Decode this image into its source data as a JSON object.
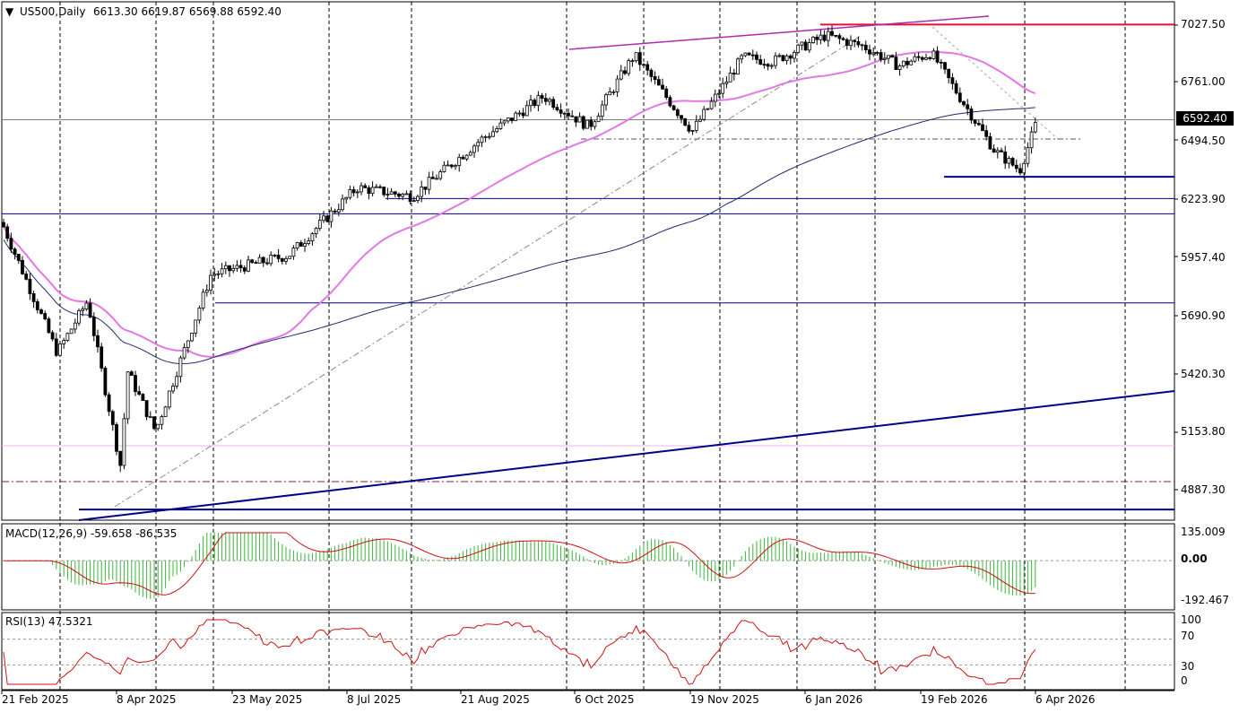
{
  "header": {
    "symbol_label": "US500,Daily",
    "ohlc": "6613.30 6619.87 6569.88 6592.40",
    "menu_icon": "triangle-down-icon"
  },
  "main_axis": {
    "ticks": [
      "7027.50",
      "6761.00",
      "6494.50",
      "6223.90",
      "5957.40",
      "5690.90",
      "5420.30",
      "5153.80",
      "4887.30"
    ],
    "last_price": "6592.40"
  },
  "macd": {
    "label": "MACD(12,26,9) -59.658 -86.535",
    "ticks": [
      "135.009",
      "0.00",
      "-192.467"
    ]
  },
  "rsi": {
    "label": "RSI(13) 47.5321",
    "ticks": [
      "100",
      "70",
      "30",
      "0"
    ]
  },
  "x_axis": {
    "labels": [
      "21 Feb 2025",
      "8 Apr 2025",
      "23 May 2025",
      "8 Jul 2025",
      "21 Aug 2025",
      "6 Oct 2025",
      "19 Nov 2025",
      "6 Jan 2026",
      "19 Feb 2026",
      "6 Apr 2026"
    ]
  },
  "colors": {
    "ma50": "#e377e3",
    "ma200": "#1f2a6b",
    "hline_blue": "#00008b",
    "hline_red": "#e0103a",
    "trendline_pink": "#b02ab0",
    "macd_hist": "#3cb43c",
    "macd_signal": "#d01010",
    "rsi_line": "#d01010"
  },
  "chart_data": {
    "type": "candlestick",
    "symbol": "US500",
    "timeframe": "Daily",
    "y_range": [
      4780,
      7100
    ],
    "key_points": [
      {
        "date": "2025-02-19",
        "close": 6120
      },
      {
        "date": "2025-03-13",
        "close": 5520
      },
      {
        "date": "2025-03-25",
        "close": 5760
      },
      {
        "date": "2025-04-08",
        "close": 4950
      },
      {
        "date": "2025-04-09",
        "close": 5460
      },
      {
        "date": "2025-04-21",
        "close": 5160
      },
      {
        "date": "2025-05-13",
        "close": 5880
      },
      {
        "date": "2025-06-13",
        "close": 5970
      },
      {
        "date": "2025-07-10",
        "close": 6280
      },
      {
        "date": "2025-08-01",
        "close": 6240
      },
      {
        "date": "2025-08-28",
        "close": 6500
      },
      {
        "date": "2025-09-22",
        "close": 6700
      },
      {
        "date": "2025-10-10",
        "close": 6560
      },
      {
        "date": "2025-10-28",
        "close": 6890
      },
      {
        "date": "2025-11-20",
        "close": 6540
      },
      {
        "date": "2025-12-10",
        "close": 6880
      },
      {
        "date": "2025-12-22",
        "close": 6860
      },
      {
        "date": "2026-01-12",
        "close": 6980
      },
      {
        "date": "2026-01-27",
        "close": 6930
      },
      {
        "date": "2026-02-10",
        "close": 6840
      },
      {
        "date": "2026-02-23",
        "close": 6900
      },
      {
        "date": "2026-03-06",
        "close": 6700
      },
      {
        "date": "2026-03-20",
        "close": 6450
      },
      {
        "date": "2026-03-30",
        "close": 6360
      },
      {
        "date": "2026-04-06",
        "close": 6592.4
      }
    ],
    "horizontal_levels": [
      {
        "price": 7030,
        "color": "red"
      },
      {
        "price": 6330,
        "color": "blue"
      },
      {
        "price": 6230,
        "color": "blue"
      },
      {
        "price": 6160,
        "color": "blue"
      },
      {
        "price": 5750,
        "color": "blue"
      },
      {
        "price": 4800,
        "color": "blue"
      }
    ],
    "macd": {
      "macd": -59.658,
      "signal": -86.535,
      "ylim": [
        -220,
        135.009
      ]
    },
    "rsi": {
      "value": 47.5321,
      "levels": [
        70,
        30
      ],
      "ylim": [
        0,
        100
      ]
    }
  }
}
